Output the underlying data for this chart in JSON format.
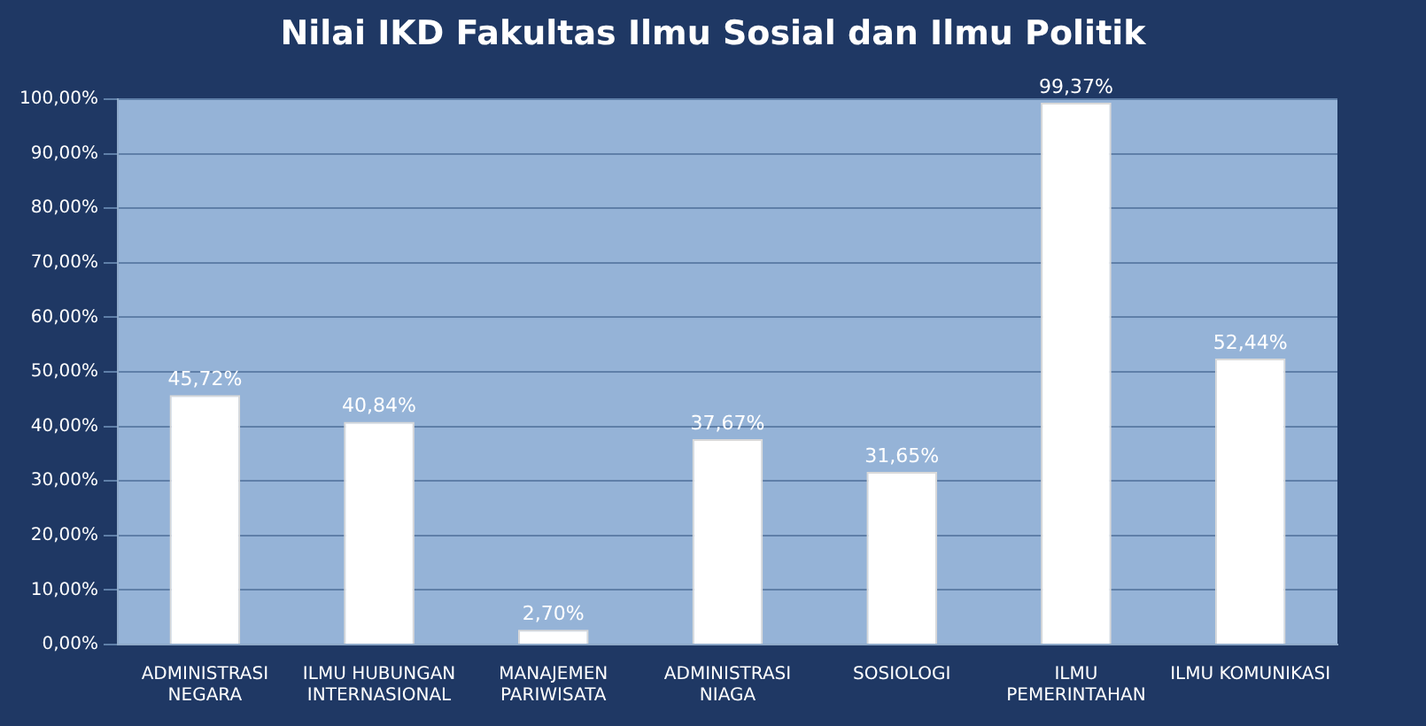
{
  "chart_data": {
    "type": "bar",
    "title": "Nilai IKD Fakultas Ilmu Sosial dan Ilmu Politik",
    "categories": [
      "ADMINISTRASI\nNEGARA",
      "ILMU HUBUNGAN\nINTERNASIONAL",
      "MANAJEMEN\nPARIWISATA",
      "ADMINISTRASI\nNIAGA",
      "SOSIOLOGI",
      "ILMU\nPEMERINTAHAN",
      "ILMU KOMUNIKASI"
    ],
    "values": [
      45.72,
      40.84,
      2.7,
      37.67,
      31.65,
      99.37,
      52.44
    ],
    "value_labels": [
      "45,72%",
      "40,84%",
      "2,70%",
      "37,67%",
      "31,65%",
      "99,37%",
      "52,44%"
    ],
    "color": "#ffffff",
    "ylim": [
      0,
      100
    ],
    "yticks": [
      {
        "value": 0,
        "label": "0,00%"
      },
      {
        "value": 10,
        "label": "10,00%"
      },
      {
        "value": 20,
        "label": "20,00%"
      },
      {
        "value": 30,
        "label": "30,00%"
      },
      {
        "value": 40,
        "label": "40,00%"
      },
      {
        "value": 50,
        "label": "50,00%"
      },
      {
        "value": 60,
        "label": "60,00%"
      },
      {
        "value": 70,
        "label": "70,00%"
      },
      {
        "value": 80,
        "label": "80,00%"
      },
      {
        "value": 90,
        "label": "90,00%"
      },
      {
        "value": 100,
        "label": "100,00%"
      }
    ],
    "grid": "y",
    "legend": false
  }
}
